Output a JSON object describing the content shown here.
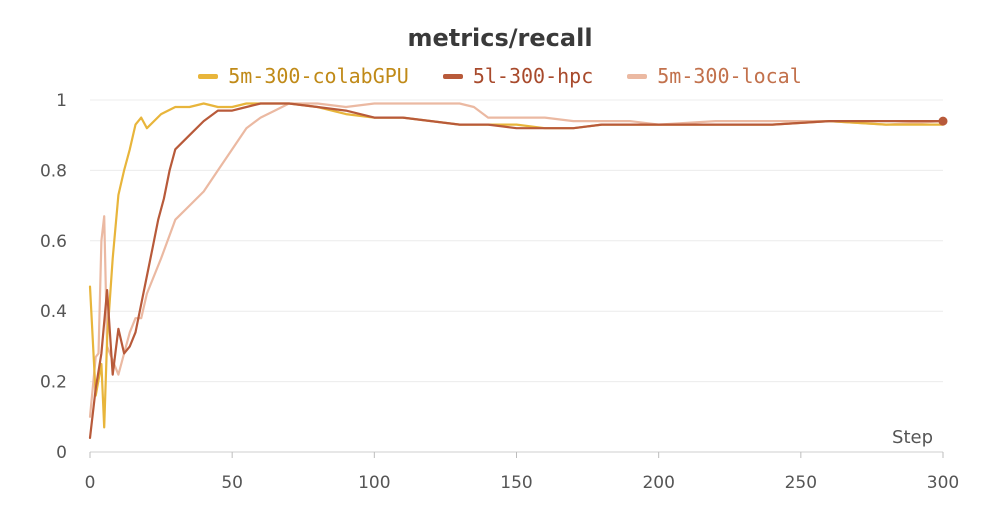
{
  "chart_data": {
    "type": "line",
    "title": "metrics/recall",
    "xlabel": "Step",
    "ylabel": "",
    "xlim": [
      0,
      300
    ],
    "ylim": [
      0,
      1
    ],
    "xticks": [
      0,
      50,
      100,
      150,
      200,
      250,
      300
    ],
    "yticks": [
      0,
      0.2,
      0.4,
      0.6,
      0.8,
      1
    ],
    "ytick_labels": [
      "0",
      "0.2",
      "0.4",
      "0.6",
      "0.8",
      "1"
    ],
    "grid": "horizontal",
    "legend_position": "top-center",
    "series": [
      {
        "name": "5m-300-colabGPU",
        "color": "#e8b53b",
        "x": [
          0,
          2,
          4,
          5,
          6,
          8,
          10,
          12,
          14,
          16,
          18,
          20,
          25,
          30,
          35,
          40,
          45,
          50,
          55,
          60,
          70,
          80,
          90,
          100,
          110,
          120,
          130,
          140,
          150,
          160,
          170,
          180,
          190,
          200,
          220,
          240,
          260,
          280,
          300
        ],
        "y": [
          0.47,
          0.16,
          0.25,
          0.07,
          0.32,
          0.55,
          0.73,
          0.8,
          0.86,
          0.93,
          0.95,
          0.92,
          0.96,
          0.98,
          0.98,
          0.99,
          0.98,
          0.98,
          0.99,
          0.99,
          0.99,
          0.98,
          0.96,
          0.95,
          0.95,
          0.94,
          0.93,
          0.93,
          0.93,
          0.92,
          0.92,
          0.93,
          0.93,
          0.93,
          0.93,
          0.93,
          0.94,
          0.93,
          0.93
        ]
      },
      {
        "name": "5l-300-hpc",
        "color": "#b85a3a",
        "x": [
          0,
          2,
          4,
          6,
          8,
          10,
          12,
          14,
          16,
          18,
          20,
          22,
          24,
          26,
          28,
          30,
          35,
          40,
          45,
          50,
          55,
          60,
          70,
          80,
          90,
          100,
          110,
          120,
          130,
          140,
          150,
          160,
          170,
          180,
          190,
          200,
          220,
          240,
          260,
          280,
          300
        ],
        "y": [
          0.04,
          0.18,
          0.28,
          0.46,
          0.22,
          0.35,
          0.28,
          0.3,
          0.34,
          0.42,
          0.5,
          0.58,
          0.66,
          0.72,
          0.8,
          0.86,
          0.9,
          0.94,
          0.97,
          0.97,
          0.98,
          0.99,
          0.99,
          0.98,
          0.97,
          0.95,
          0.95,
          0.94,
          0.93,
          0.93,
          0.92,
          0.92,
          0.92,
          0.93,
          0.93,
          0.93,
          0.93,
          0.93,
          0.94,
          0.94,
          0.94
        ]
      },
      {
        "name": "5m-300-local",
        "color": "#ebb9a2",
        "x": [
          0,
          2,
          3,
          4,
          5,
          6,
          8,
          10,
          12,
          14,
          16,
          18,
          20,
          25,
          30,
          35,
          40,
          45,
          50,
          55,
          60,
          65,
          70,
          80,
          90,
          100,
          110,
          120,
          130,
          135,
          140,
          150,
          160,
          170,
          180,
          190,
          200,
          220,
          240,
          260,
          280,
          300
        ],
        "y": [
          0.1,
          0.27,
          0.28,
          0.6,
          0.67,
          0.3,
          0.26,
          0.22,
          0.28,
          0.34,
          0.38,
          0.38,
          0.45,
          0.55,
          0.66,
          0.7,
          0.74,
          0.8,
          0.86,
          0.92,
          0.95,
          0.97,
          0.99,
          0.99,
          0.98,
          0.99,
          0.99,
          0.99,
          0.99,
          0.98,
          0.95,
          0.95,
          0.95,
          0.94,
          0.94,
          0.94,
          0.93,
          0.94,
          0.94,
          0.94,
          0.93,
          0.94
        ]
      }
    ]
  }
}
